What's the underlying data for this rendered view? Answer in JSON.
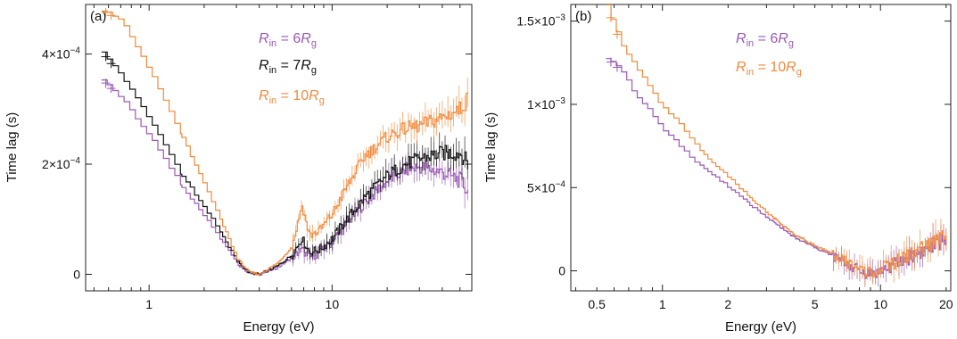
{
  "chart_data": [
    {
      "type": "line",
      "panel": "(a)",
      "xlabel": "Energy (eV)",
      "ylabel": "Time lag (s)",
      "xscale": "log",
      "xlim": [
        0.45,
        58
      ],
      "ylim": [
        -3e-05,
        0.00049
      ],
      "xticks": [
        {
          "v": 1,
          "label": "1"
        },
        {
          "v": 10,
          "label": "10"
        }
      ],
      "yticks": [
        {
          "v": 0,
          "base": "0",
          "exp": ""
        },
        {
          "v": 0.0002,
          "base": "2×10",
          "exp": "−4"
        },
        {
          "v": 0.0004,
          "base": "4×10",
          "exp": "−4"
        }
      ],
      "legend": [
        {
          "label": "R",
          "sub": "in",
          "eq": " = 6",
          "unit": "R",
          "unit_sub": "g",
          "color": "#9b59b6"
        },
        {
          "label": "R",
          "sub": "in",
          "eq": " = 7",
          "unit": "R",
          "unit_sub": "g",
          "color": "#111111"
        },
        {
          "label": "R",
          "sub": "in",
          "eq": " = 10",
          "unit": "R",
          "unit_sub": "g",
          "color": "#f08a3c"
        }
      ],
      "series": [
        {
          "color": "#9b59b6",
          "x": [
            0.55,
            0.7,
            1.0,
            1.5,
            2.0,
            2.5,
            3.0,
            3.5,
            4.0,
            5.0,
            6.0,
            6.8,
            7.5,
            8.5,
            10,
            12,
            15,
            20,
            25,
            30,
            40,
            50,
            55
          ],
          "y": [
            0.000355,
            0.00032,
            0.00025,
            0.00016,
            0.000105,
            6e-05,
            2e-05,
            2e-06,
            0.0,
            1.2e-05,
            3e-05,
            4.5e-05,
            3e-05,
            4e-05,
            6e-05,
            9.5e-05,
            0.00013,
            0.00017,
            0.00019,
            0.000195,
            0.000185,
            0.00017,
            0.00015
          ]
        },
        {
          "color": "#111111",
          "x": [
            0.55,
            0.7,
            1.0,
            1.5,
            2.0,
            2.5,
            3.0,
            3.5,
            4.0,
            5.0,
            6.0,
            6.8,
            7.5,
            8.5,
            10,
            12,
            15,
            20,
            25,
            30,
            40,
            50,
            55
          ],
          "y": [
            0.000405,
            0.00036,
            0.00028,
            0.00018,
            0.00012,
            7e-05,
            2.5e-05,
            3e-06,
            0.0,
            1.5e-05,
            3.5e-05,
            6.5e-05,
            4e-05,
            4.5e-05,
            6.5e-05,
            0.0001,
            0.00014,
            0.00018,
            0.0002,
            0.00021,
            0.00022,
            0.00022,
            0.0002
          ]
        },
        {
          "color": "#f08a3c",
          "x": [
            0.55,
            0.7,
            1.0,
            1.5,
            2.0,
            2.5,
            3.0,
            3.5,
            4.0,
            5.0,
            6.0,
            6.8,
            7.5,
            8.5,
            10,
            12,
            15,
            20,
            25,
            30,
            40,
            50,
            55
          ],
          "y": [
            0.00048,
            0.00046,
            0.00037,
            0.00025,
            0.00016,
            9e-05,
            3e-05,
            4e-06,
            0.0,
            2e-05,
            5e-05,
            0.000125,
            7e-05,
            8e-05,
            0.00011,
            0.00016,
            0.000215,
            0.00025,
            0.000265,
            0.00027,
            0.000285,
            0.0003,
            0.00032
          ]
        }
      ]
    },
    {
      "type": "line",
      "panel": "(b)",
      "xlabel": "Energy (eV)",
      "ylabel": "Time lag (s)",
      "xscale": "log",
      "xlim": [
        0.38,
        21
      ],
      "ylim": [
        -0.00012,
        0.0016
      ],
      "xticks": [
        {
          "v": 0.5,
          "label": "0.5"
        },
        {
          "v": 1,
          "label": "1"
        },
        {
          "v": 2,
          "label": "2"
        },
        {
          "v": 5,
          "label": "5"
        },
        {
          "v": 10,
          "label": "10"
        },
        {
          "v": 20,
          "label": "20"
        }
      ],
      "yticks": [
        {
          "v": 0,
          "base": "0",
          "exp": ""
        },
        {
          "v": 0.0005,
          "base": "5×10",
          "exp": "−4"
        },
        {
          "v": 0.001,
          "base": "1×10",
          "exp": "−3"
        },
        {
          "v": 0.0015,
          "base": "1.5×10",
          "exp": "−3"
        }
      ],
      "legend": [
        {
          "label": "R",
          "sub": "in",
          "eq": " = 6",
          "unit": "R",
          "unit_sub": "g",
          "color": "#9b59b6"
        },
        {
          "label": "R",
          "sub": "in",
          "eq": " = 10",
          "unit": "R",
          "unit_sub": "g",
          "color": "#f08a3c"
        }
      ],
      "series": [
        {
          "color": "#9b59b6",
          "x": [
            0.55,
            0.65,
            0.75,
            0.85,
            1.0,
            1.2,
            1.4,
            1.7,
            2.0,
            2.5,
            3.0,
            3.5,
            4.0,
            5.0,
            6.0,
            7.0,
            8.0,
            9.0,
            10,
            12,
            15,
            18,
            20
          ],
          "y": [
            0.00128,
            0.0012,
            0.00105,
            0.00098,
            0.00085,
            0.00075,
            0.00066,
            0.00058,
            0.0005,
            0.0004,
            0.00032,
            0.00026,
            0.0002,
            0.00014,
            9e-05,
            4e-05,
            0.0,
            -2e-05,
            0.0,
            5e-05,
            0.00011,
            0.00016,
            0.0002
          ]
        },
        {
          "color": "#f08a3c",
          "x": [
            0.55,
            0.65,
            0.75,
            0.85,
            1.0,
            1.2,
            1.4,
            1.7,
            2.0,
            2.5,
            3.0,
            3.5,
            4.0,
            5.0,
            6.0,
            7.0,
            8.0,
            9.0,
            10,
            12,
            15,
            18,
            20
          ],
          "y": [
            0.0016,
            0.00135,
            0.00122,
            0.00112,
            0.00098,
            0.00088,
            0.00076,
            0.00065,
            0.00056,
            0.00044,
            0.00035,
            0.00028,
            0.00022,
            0.00015,
            0.0001,
            5e-05,
            1e-05,
            -1e-05,
            1e-05,
            6e-05,
            0.00013,
            0.00018,
            0.00022
          ]
        }
      ]
    }
  ]
}
